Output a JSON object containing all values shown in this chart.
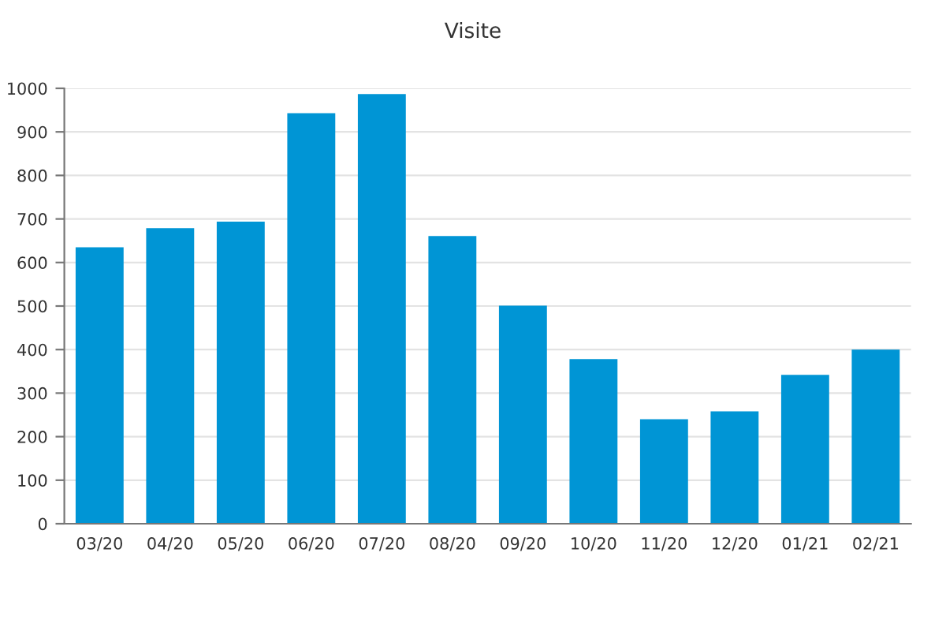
{
  "chart_data": {
    "type": "bar",
    "title": "Visite",
    "categories": [
      "03/20",
      "04/20",
      "05/20",
      "06/20",
      "07/20",
      "08/20",
      "09/20",
      "10/20",
      "11/20",
      "12/20",
      "01/21",
      "02/21"
    ],
    "values": [
      635,
      679,
      694,
      943,
      987,
      661,
      501,
      378,
      240,
      258,
      342,
      400
    ],
    "color": "#0095d5",
    "ylim": [
      0,
      1000
    ],
    "yticks": [
      0,
      100,
      200,
      300,
      400,
      500,
      600,
      700,
      800,
      900,
      1000
    ],
    "grid": "y"
  }
}
